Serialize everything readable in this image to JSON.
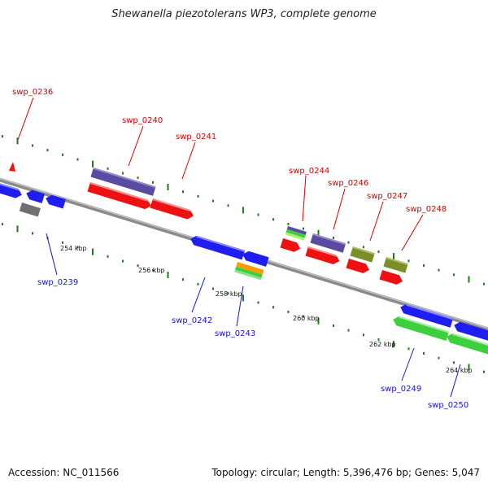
{
  "title": "Shewanella piezotolerans WP3, complete genome",
  "footer": {
    "accession": "Accession: NC_011566",
    "summary": "Topology: circular; Length: 5,396,476 bp; Genes: 5,047"
  },
  "colors": {
    "backbone": "#8a8a8a",
    "dots": "#1e7a1e",
    "forward_label": "#d40000",
    "reverse_label": "#1414c8",
    "red": "#ee1111",
    "blue": "#1e1ef0",
    "purple": "#5a4aa0",
    "gray": "#707070",
    "olive": "#7a8f2a",
    "green": "#3dcf3d",
    "orange": "#ff9a00"
  },
  "position_labels": [
    "254 kbp",
    "256 kbp",
    "258 kbp",
    "260 kbp",
    "262 kbp",
    "264 kbp"
  ],
  "gene_labels": {
    "forward": [
      "swp_0236",
      "swp_0240",
      "swp_0241",
      "swp_0244",
      "swp_0246",
      "swp_0247",
      "swp_0248"
    ],
    "reverse": [
      "swp_0239",
      "swp_0242",
      "swp_0243",
      "swp_0249",
      "swp_0250"
    ]
  }
}
